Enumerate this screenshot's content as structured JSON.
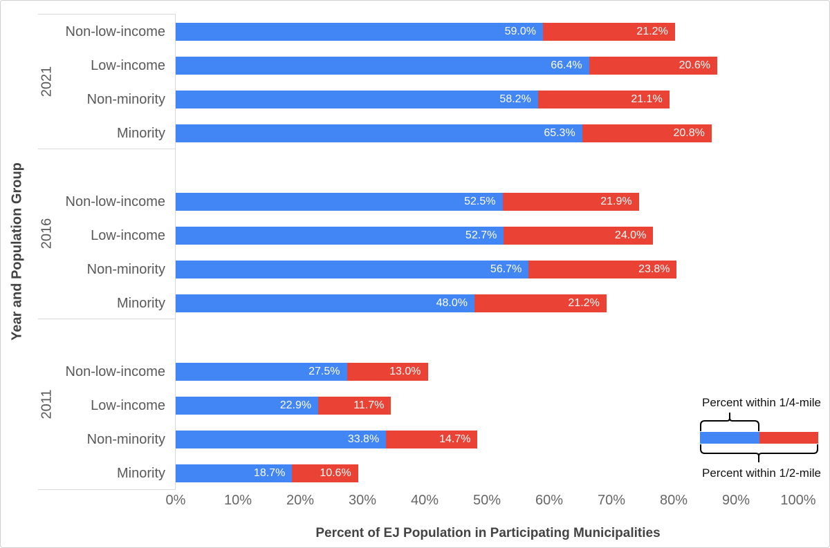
{
  "chart_data": {
    "type": "bar",
    "orientation": "horizontal",
    "stacked": true,
    "grid": false,
    "legend_position": "bottom-right",
    "xlabel": "Percent of EJ Population in Participating Municipalities",
    "ylabel": "Year and Population Group",
    "xlim": [
      0,
      100
    ],
    "x_tick_values": [
      0,
      10,
      20,
      30,
      40,
      50,
      60,
      70,
      80,
      90,
      100
    ],
    "x_tick_labels": [
      "0%",
      "10%",
      "20%",
      "30%",
      "40%",
      "50%",
      "60%",
      "70%",
      "80%",
      "90%",
      "100%"
    ],
    "series_names": [
      "Percent within 1/4-mile",
      "Percent within 1/2-mile"
    ],
    "groups": [
      {
        "label": "2021",
        "bars": [
          {
            "category": "Non-low-income",
            "quarter_mile": 59.0,
            "half_mile": 21.2
          },
          {
            "category": "Low-income",
            "quarter_mile": 66.4,
            "half_mile": 20.6
          },
          {
            "category": "Non-minority",
            "quarter_mile": 58.2,
            "half_mile": 21.1
          },
          {
            "category": "Minority",
            "quarter_mile": 65.3,
            "half_mile": 20.8
          }
        ]
      },
      {
        "label": "2016",
        "bars": [
          {
            "category": "Non-low-income",
            "quarter_mile": 52.5,
            "half_mile": 21.9
          },
          {
            "category": "Low-income",
            "quarter_mile": 52.7,
            "half_mile": 24.0
          },
          {
            "category": "Non-minority",
            "quarter_mile": 56.7,
            "half_mile": 23.8
          },
          {
            "category": "Minority",
            "quarter_mile": 48.0,
            "half_mile": 21.2
          }
        ]
      },
      {
        "label": "2011",
        "bars": [
          {
            "category": "Non-low-income",
            "quarter_mile": 27.5,
            "half_mile": 13.0
          },
          {
            "category": "Low-income",
            "quarter_mile": 22.9,
            "half_mile": 11.7
          },
          {
            "category": "Non-minority",
            "quarter_mile": 33.8,
            "half_mile": 14.7
          },
          {
            "category": "Minority",
            "quarter_mile": 18.7,
            "half_mile": 10.6
          }
        ]
      }
    ]
  },
  "colors": {
    "quarter_mile": "#4285F4",
    "half_mile": "#EA4335",
    "separator_line": "#D9D9D9",
    "category_text": "#595959",
    "tick_text": "#666666",
    "title_text": "#434343",
    "value_text": "#FFFFFF"
  }
}
